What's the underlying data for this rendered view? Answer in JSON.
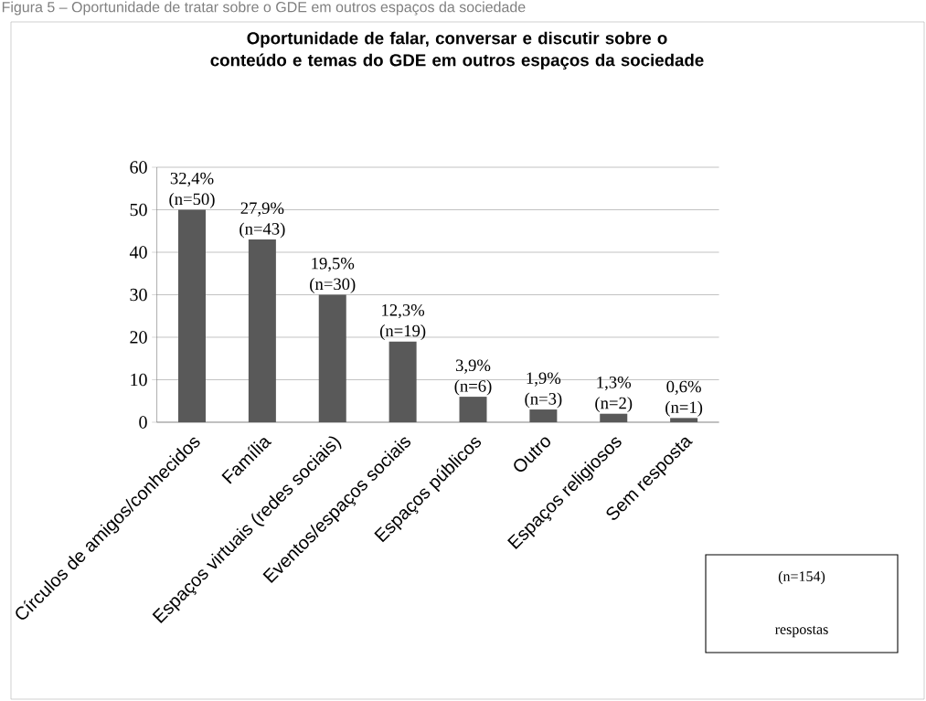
{
  "chart_data": {
    "type": "bar",
    "title": "Oportunidade de falar, conversar e discutir sobre o conteúdo e temas do GDE em outros espaços da sociedade",
    "categories": [
      "Círculos de amigos/conhecidos",
      "Família",
      "Espaços virtuais (redes sociais)",
      "Eventos/espaços sociais",
      "Espaços públicos",
      "Outro",
      "Espaços religiosos",
      "Sem resposta"
    ],
    "values": [
      50,
      43,
      30,
      19,
      6,
      3,
      2,
      1
    ],
    "value_labels": [
      "32,4% (n=50)",
      "27,9% (n=43)",
      "19,5% (n=30)",
      "12,3% (n=19)",
      "3,9% (n=6)",
      "1,9% (n=3)",
      "1,3% (n=2)",
      "0,6% (n=1)"
    ],
    "color": "#595959",
    "ylim": [
      0,
      60
    ],
    "yticks": [
      0,
      10,
      20,
      30,
      40,
      50,
      60
    ],
    "grid": "y",
    "annotations": [
      "Figura 5 – Oportunidade de tratar sobre o GDE em outros espaços da sociedade",
      "(n=154)",
      "respostas"
    ]
  }
}
